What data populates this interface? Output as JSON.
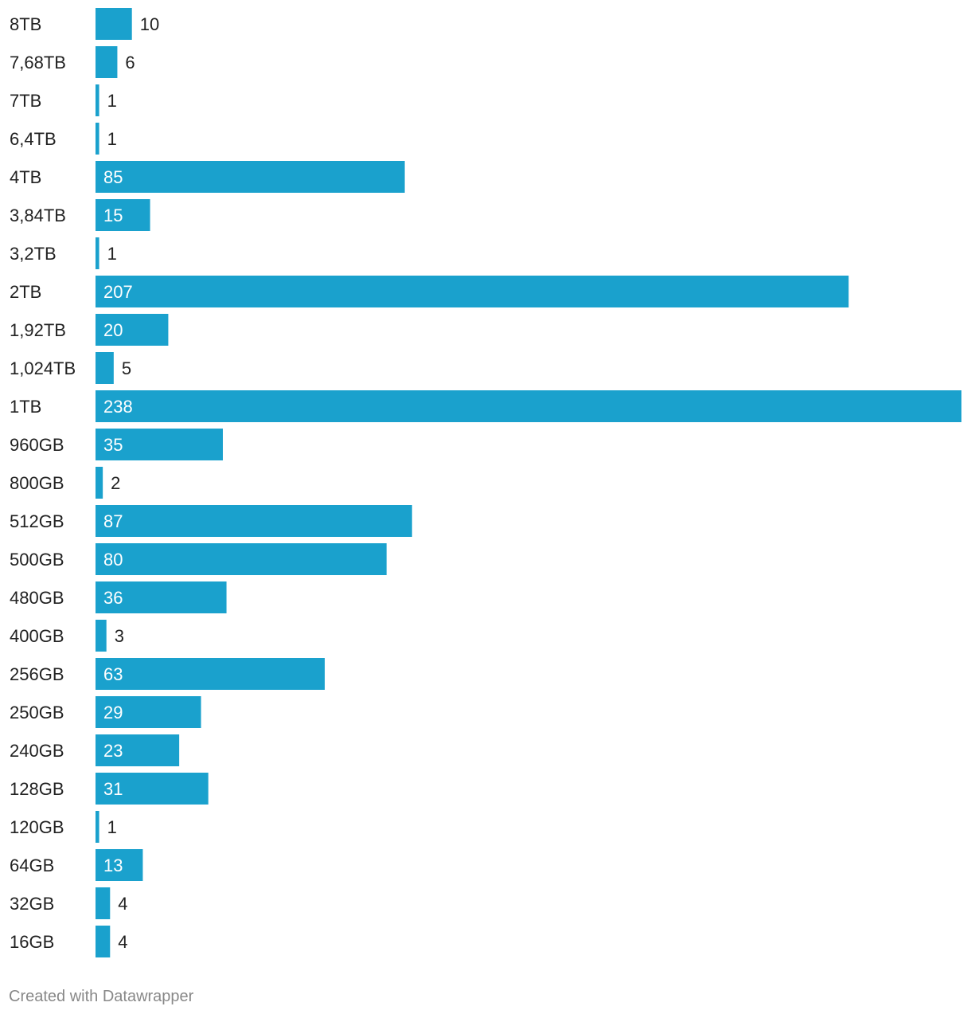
{
  "chart_data": {
    "type": "bar",
    "orientation": "horizontal",
    "categories": [
      "8TB",
      "7,68TB",
      "7TB",
      "6,4TB",
      "4TB",
      "3,84TB",
      "3,2TB",
      "2TB",
      "1,92TB",
      "1,024TB",
      "1TB",
      "960GB",
      "800GB",
      "512GB",
      "500GB",
      "480GB",
      "400GB",
      "256GB",
      "250GB",
      "240GB",
      "128GB",
      "120GB",
      "64GB",
      "32GB",
      "16GB"
    ],
    "values": [
      10,
      6,
      1,
      1,
      85,
      15,
      1,
      207,
      20,
      5,
      238,
      35,
      2,
      87,
      80,
      36,
      3,
      63,
      29,
      23,
      31,
      1,
      13,
      4,
      4
    ],
    "xlim": [
      0,
      238
    ],
    "grid": false,
    "legend": "none",
    "bar_color": "#1aa1cd",
    "label_inside_color": "#ffffff",
    "label_outside_color": "#222222"
  },
  "footer": {
    "credit": "Created with Datawrapper"
  }
}
